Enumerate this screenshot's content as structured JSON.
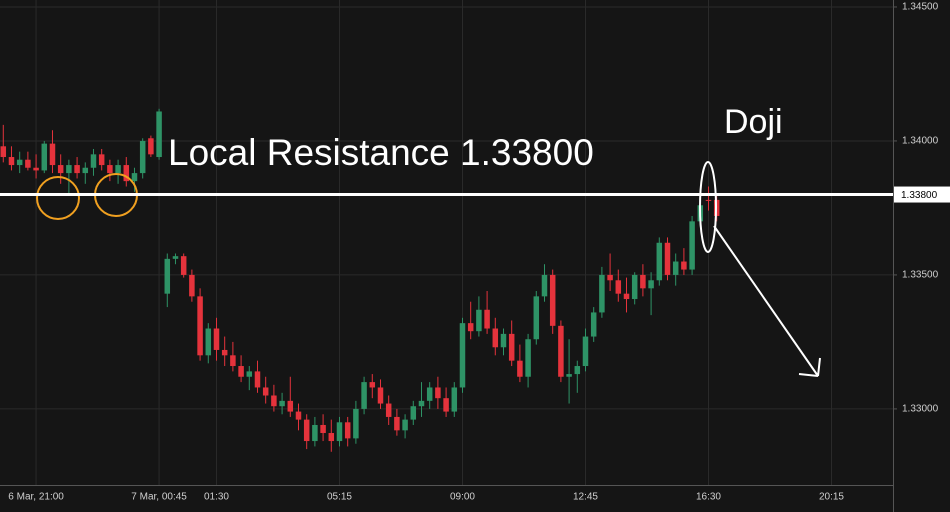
{
  "chart_data": {
    "type": "candlestick",
    "up_color": "#2e9366",
    "down_color": "#e5333c",
    "grid": true,
    "ylim": [
      1.32716,
      1.34526
    ],
    "yticks": [
      {
        "value": 1.345,
        "label": "1.34500"
      },
      {
        "value": 1.34,
        "label": "1.34000"
      },
      {
        "value": 1.335,
        "label": "1.33500"
      },
      {
        "value": 1.33,
        "label": "1.33000"
      }
    ],
    "xlim": [
      -0.4,
      108.5
    ],
    "xticks": [
      {
        "value": 4,
        "label": "6 Mar, 21:00"
      },
      {
        "value": 19,
        "label": "7 Mar, 00:45"
      },
      {
        "value": 26,
        "label": "01:30"
      },
      {
        "value": 41,
        "label": "05:15"
      },
      {
        "value": 56,
        "label": "09:00"
      },
      {
        "value": 71,
        "label": "12:45"
      },
      {
        "value": 86,
        "label": "16:30"
      },
      {
        "value": 101,
        "label": "20:15"
      }
    ],
    "resistance": {
      "value": 1.338,
      "label": "1.33800"
    },
    "annotations": [
      "Local Resistance 1.33800",
      "Doji"
    ],
    "candles": {
      "open": [
        1.3398,
        1.3394,
        1.3391,
        1.3393,
        1.339,
        1.3389,
        1.3399,
        1.3391,
        1.3388,
        1.3391,
        1.3388,
        1.339,
        1.3395,
        1.3391,
        1.3388,
        1.3391,
        1.3385,
        1.3388,
        1.3401,
        1.3394,
        1.3343,
        1.3356,
        1.3357,
        1.335,
        1.3342,
        1.332,
        1.333,
        1.3322,
        1.332,
        1.3316,
        1.3312,
        1.3314,
        1.3308,
        1.3305,
        1.3301,
        1.3303,
        1.3299,
        1.3296,
        1.3288,
        1.3294,
        1.3291,
        1.3288,
        1.3295,
        1.3289,
        1.33,
        1.331,
        1.3308,
        1.3302,
        1.3297,
        1.3292,
        1.3296,
        1.3301,
        1.3303,
        1.3308,
        1.3304,
        1.3299,
        1.3308,
        1.3332,
        1.3329,
        1.3337,
        1.333,
        1.3323,
        1.3328,
        1.3318,
        1.3312,
        1.3326,
        1.3342,
        1.335,
        1.3331,
        1.3312,
        1.3313,
        1.3316,
        1.3327,
        1.3336,
        1.335,
        1.3348,
        1.3343,
        1.3341,
        1.335,
        1.3345,
        1.3348,
        1.3362,
        1.335,
        1.3355,
        1.3352,
        1.337,
        1.3378,
        1.3378
      ],
      "high": [
        1.3406,
        1.3398,
        1.3396,
        1.3396,
        1.3395,
        1.34,
        1.3404,
        1.3395,
        1.3393,
        1.3394,
        1.3392,
        1.3397,
        1.3397,
        1.3393,
        1.3393,
        1.3394,
        1.339,
        1.3401,
        1.3402,
        1.3412,
        1.3358,
        1.3358,
        1.3358,
        1.3352,
        1.3345,
        1.3332,
        1.3334,
        1.3327,
        1.3325,
        1.332,
        1.3316,
        1.3318,
        1.3312,
        1.3309,
        1.3306,
        1.3312,
        1.3302,
        1.3298,
        1.3297,
        1.3298,
        1.3296,
        1.3297,
        1.3297,
        1.3303,
        1.3312,
        1.3313,
        1.3311,
        1.3305,
        1.33,
        1.3298,
        1.3303,
        1.331,
        1.331,
        1.3312,
        1.3308,
        1.331,
        1.3334,
        1.334,
        1.3342,
        1.3344,
        1.3334,
        1.333,
        1.3333,
        1.3324,
        1.3328,
        1.3344,
        1.3354,
        1.3352,
        1.3333,
        1.3326,
        1.3318,
        1.333,
        1.3338,
        1.3353,
        1.3358,
        1.3352,
        1.3349,
        1.3351,
        1.3354,
        1.3351,
        1.3364,
        1.3364,
        1.3358,
        1.336,
        1.3372,
        1.3378,
        1.3383,
        1.338
      ],
      "low": [
        1.3392,
        1.3389,
        1.3388,
        1.3389,
        1.3386,
        1.3388,
        1.3388,
        1.3384,
        1.338,
        1.3386,
        1.3384,
        1.3387,
        1.3389,
        1.3385,
        1.3384,
        1.3383,
        1.3381,
        1.3386,
        1.3394,
        1.3393,
        1.3338,
        1.3354,
        1.3349,
        1.334,
        1.3318,
        1.3317,
        1.3318,
        1.3316,
        1.3314,
        1.331,
        1.3307,
        1.3306,
        1.3302,
        1.3299,
        1.3298,
        1.3297,
        1.3292,
        1.3285,
        1.3286,
        1.3288,
        1.3284,
        1.3286,
        1.3286,
        1.3287,
        1.3298,
        1.3304,
        1.33,
        1.3294,
        1.329,
        1.3289,
        1.3294,
        1.3297,
        1.33,
        1.33,
        1.3297,
        1.3297,
        1.3306,
        1.3326,
        1.3327,
        1.3328,
        1.332,
        1.332,
        1.3316,
        1.331,
        1.3308,
        1.3324,
        1.334,
        1.3328,
        1.331,
        1.3302,
        1.3306,
        1.3314,
        1.3325,
        1.3334,
        1.3344,
        1.334,
        1.3336,
        1.3339,
        1.3342,
        1.3335,
        1.3346,
        1.3348,
        1.3346,
        1.335,
        1.335,
        1.3368,
        1.3374,
        1.337
      ],
      "close": [
        1.3394,
        1.3391,
        1.3393,
        1.339,
        1.3389,
        1.3399,
        1.3391,
        1.3388,
        1.3391,
        1.3388,
        1.339,
        1.3395,
        1.3391,
        1.3388,
        1.3391,
        1.3385,
        1.3388,
        1.34,
        1.3395,
        1.3411,
        1.3356,
        1.3357,
        1.335,
        1.3342,
        1.332,
        1.333,
        1.3322,
        1.332,
        1.3316,
        1.3312,
        1.3314,
        1.3308,
        1.3305,
        1.3301,
        1.3303,
        1.3299,
        1.3296,
        1.3288,
        1.3294,
        1.3291,
        1.3288,
        1.3295,
        1.3289,
        1.33,
        1.331,
        1.3308,
        1.3302,
        1.3297,
        1.3292,
        1.3296,
        1.3301,
        1.3303,
        1.3308,
        1.3304,
        1.3299,
        1.3308,
        1.3332,
        1.3329,
        1.3337,
        1.333,
        1.3323,
        1.3328,
        1.3318,
        1.3312,
        1.3326,
        1.3342,
        1.335,
        1.3331,
        1.3312,
        1.3313,
        1.3316,
        1.3327,
        1.3336,
        1.335,
        1.3348,
        1.3343,
        1.3341,
        1.335,
        1.3345,
        1.3348,
        1.3362,
        1.335,
        1.3355,
        1.3352,
        1.337,
        1.3376,
        1.3378,
        1.3372
      ]
    }
  }
}
